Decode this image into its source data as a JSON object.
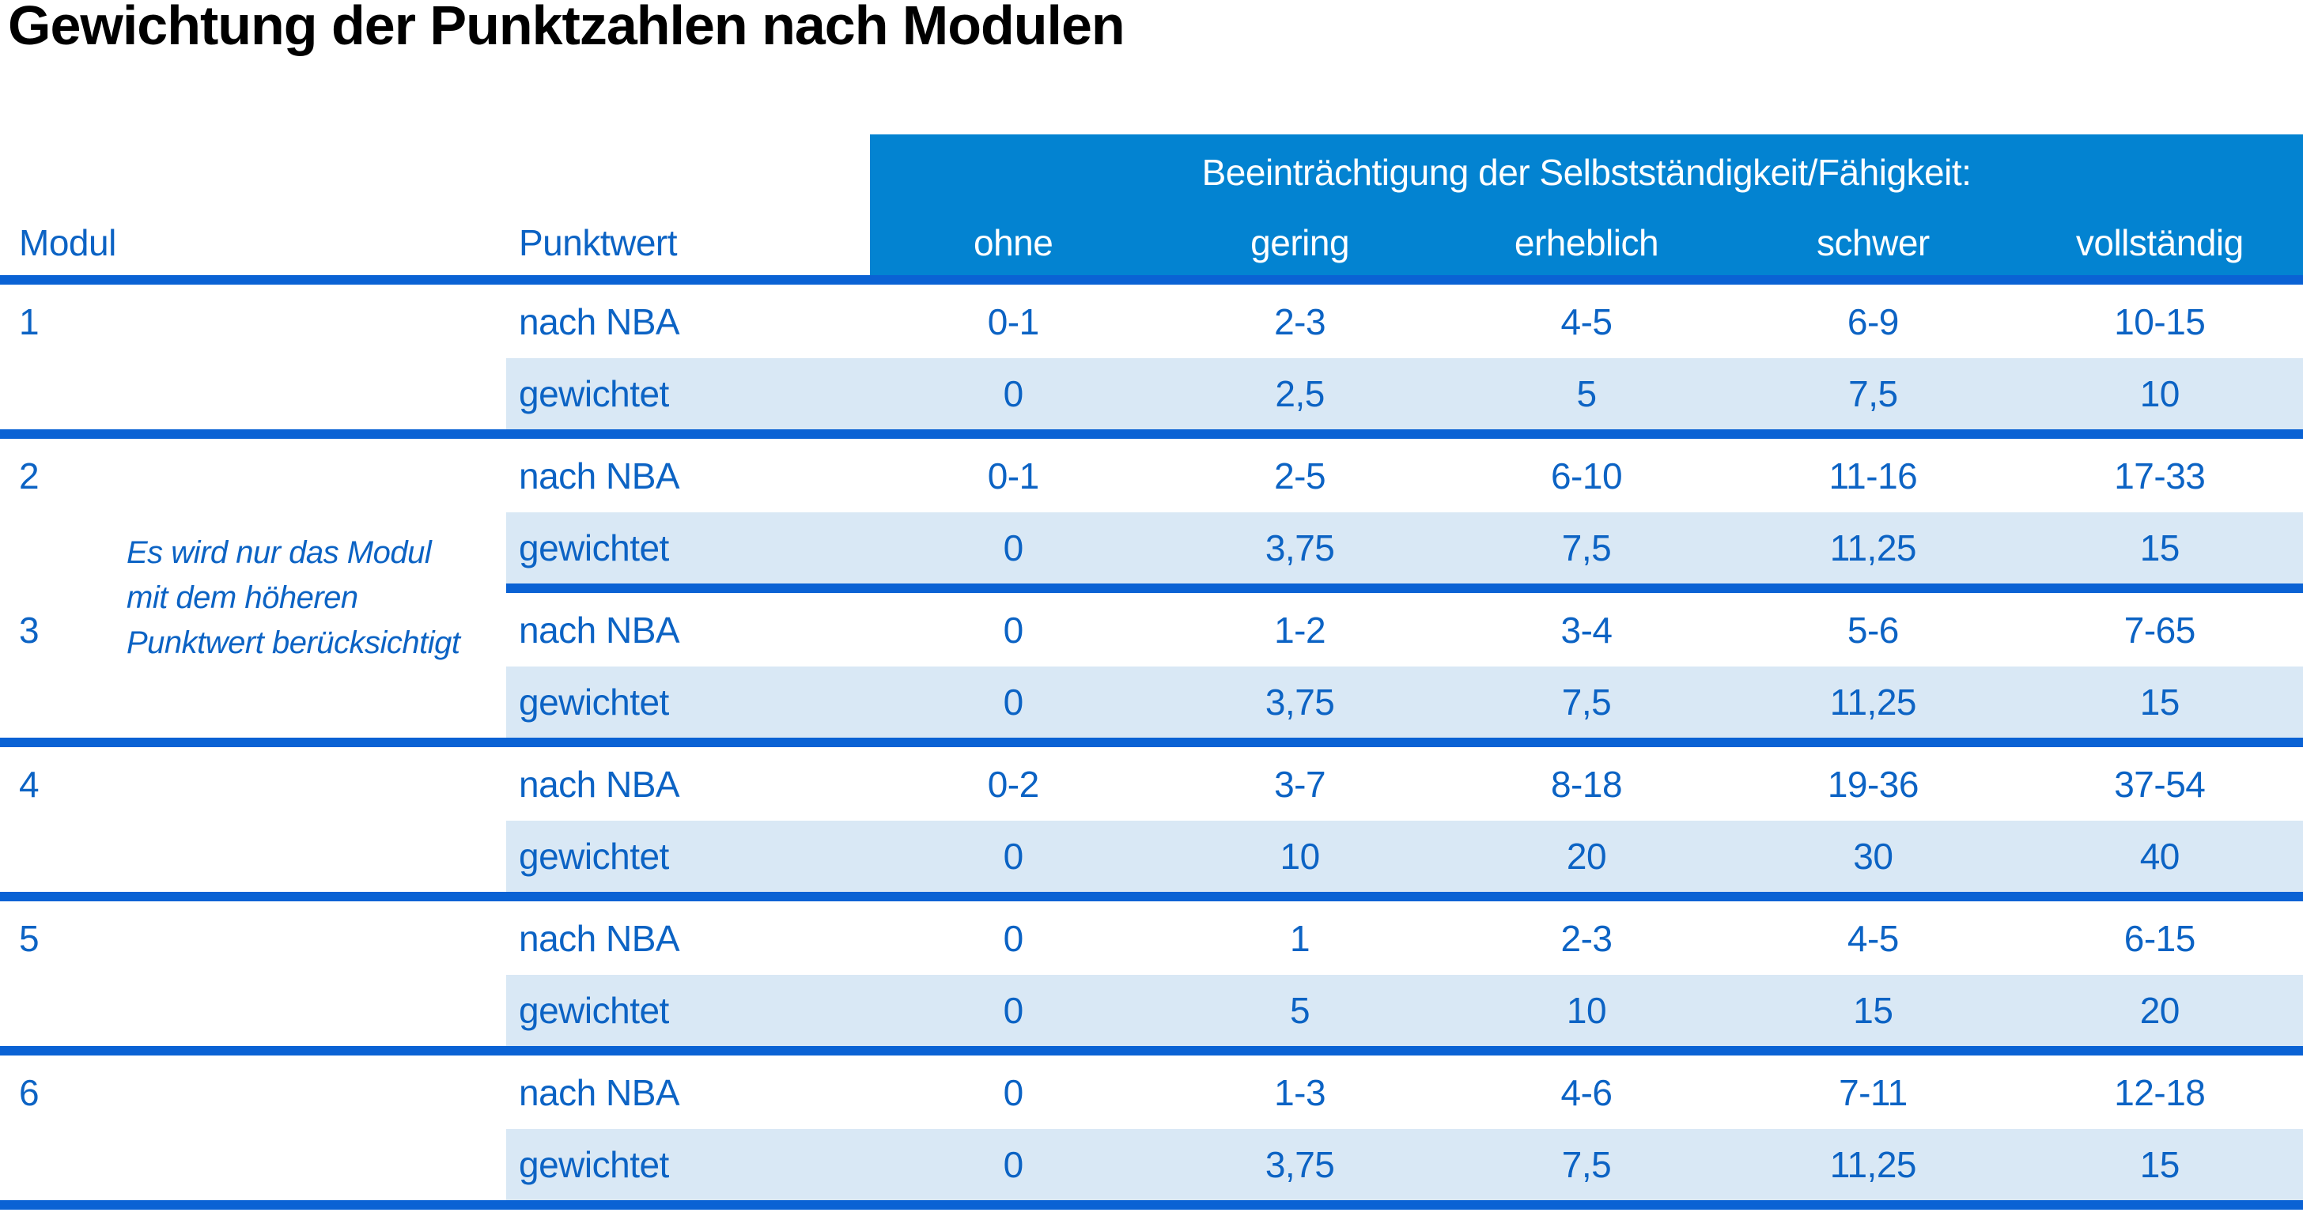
{
  "title": "Gewichtung der Punktzahlen nach Modulen",
  "colors": {
    "header_bg": "#0383D1",
    "separator_line": "#0A62D4",
    "text_blue": "#0C63C4",
    "row_shade": "#D9E8F5",
    "header_text": "#FFFFFF",
    "title_text": "#000000"
  },
  "table": {
    "col_modul": "Modul",
    "col_punktwert": "Punktwert",
    "impairment_header": "Beeinträchtigung der Selbstständigkeit/Fähigkeit:",
    "severity_levels": [
      "ohne",
      "gering",
      "erheblich",
      "schwer",
      "vollständig"
    ],
    "row_labels": {
      "nba": "nach NBA",
      "weighted": "gewichtet"
    },
    "note_lines": [
      "Es wird nur das Modul",
      "mit dem höheren",
      "Punktwert berücksichtigt"
    ],
    "modules": [
      {
        "id": "1",
        "nba": [
          "0-1",
          "2-3",
          "4-5",
          "6-9",
          "10-15"
        ],
        "weighted": [
          "0",
          "2,5",
          "5",
          "7,5",
          "10"
        ]
      },
      {
        "id": "2",
        "nba": [
          "0-1",
          "2-5",
          "6-10",
          "11-16",
          "17-33"
        ],
        "weighted": [
          "0",
          "3,75",
          "7,5",
          "11,25",
          "15"
        ]
      },
      {
        "id": "3",
        "nba": [
          "0",
          "1-2",
          "3-4",
          "5-6",
          "7-65"
        ],
        "weighted": [
          "0",
          "3,75",
          "7,5",
          "11,25",
          "15"
        ]
      },
      {
        "id": "4",
        "nba": [
          "0-2",
          "3-7",
          "8-18",
          "19-36",
          "37-54"
        ],
        "weighted": [
          "0",
          "10",
          "20",
          "30",
          "40"
        ]
      },
      {
        "id": "5",
        "nba": [
          "0",
          "1",
          "2-3",
          "4-5",
          "6-15"
        ],
        "weighted": [
          "0",
          "5",
          "10",
          "15",
          "20"
        ]
      },
      {
        "id": "6",
        "nba": [
          "0",
          "1-3",
          "4-6",
          "7-11",
          "12-18"
        ],
        "weighted": [
          "0",
          "3,75",
          "7,5",
          "11,25",
          "15"
        ]
      }
    ]
  }
}
